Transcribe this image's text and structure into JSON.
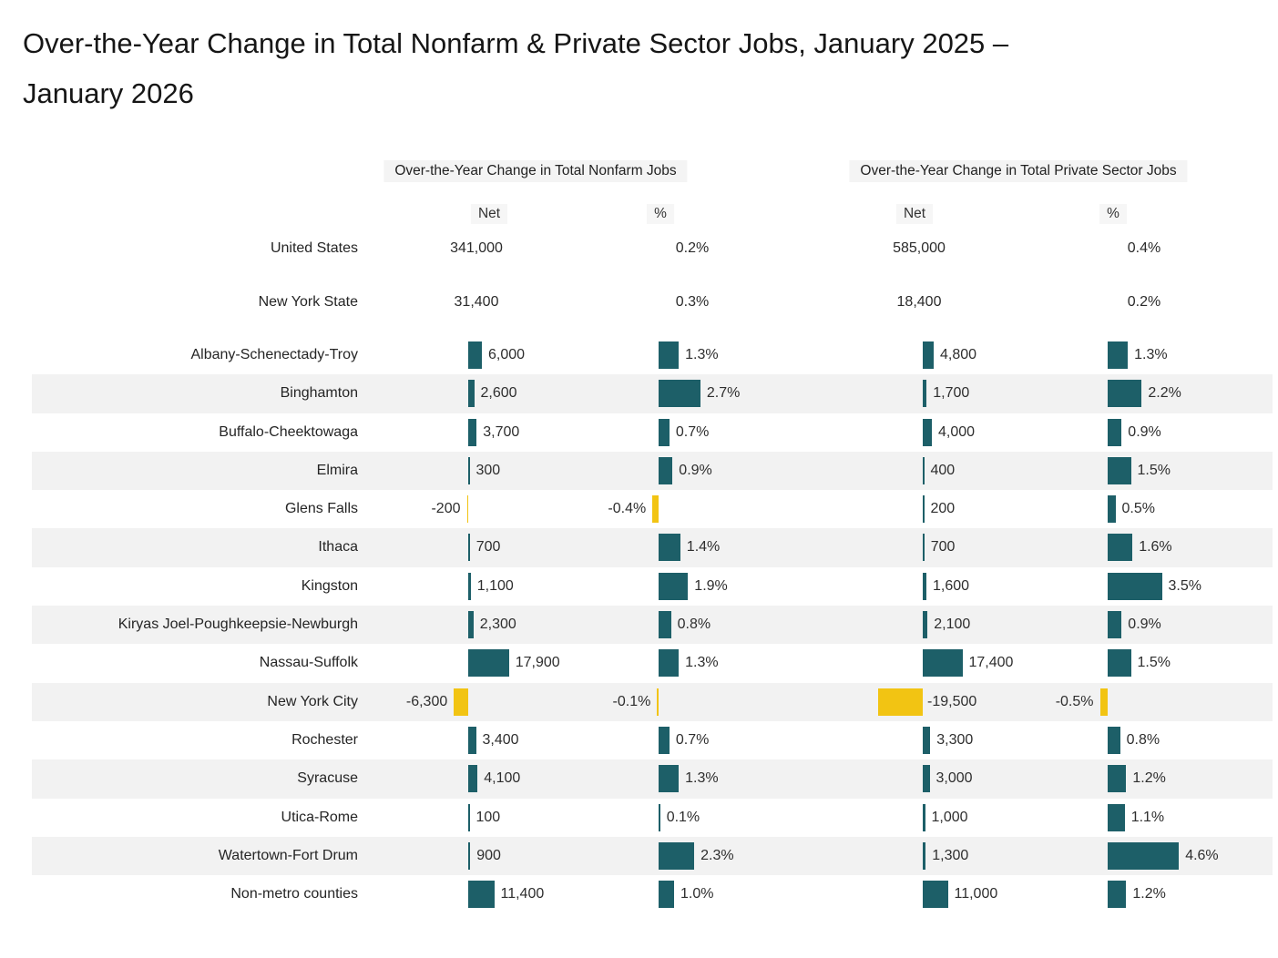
{
  "page": {
    "title": "Over-the-Year Change in Total Nonfarm & Private Sector Jobs, January 2025 – January 2026",
    "title_lines": [
      "Over-the-Year Change in Total Nonfarm & Private Sector Jobs, January 2025 –",
      "January 2026"
    ]
  },
  "chart_data": {
    "type": "bar",
    "orientation": "horizontal",
    "title": "Over-the-Year Change in Total Nonfarm & Private Sector Jobs, January 2025 – January 2026",
    "group_headers": [
      "Over-the-Year Change in Total Nonfarm Jobs",
      "Over-the-Year Change in Total Private Sector Jobs"
    ],
    "column_headers": [
      "Net",
      "%",
      "Net",
      "%"
    ],
    "colors": {
      "positive_bar": "#1d5f68",
      "negative_bar": "#f2c413",
      "row_stripe": "#f2f2f2"
    },
    "legend": "none",
    "grid": "off",
    "summary_rows": [
      {
        "label": "United States",
        "net_nonfarm": 341000,
        "pct_nonfarm": 0.2,
        "net_private": 585000,
        "pct_private": 0.4
      },
      {
        "label": "New York State",
        "net_nonfarm": 31400,
        "pct_nonfarm": 0.3,
        "net_private": 18400,
        "pct_private": 0.2
      }
    ],
    "areas": [
      {
        "label": "Albany-Schenectady-Troy",
        "net_nonfarm": 6000,
        "pct_nonfarm": 1.3,
        "net_private": 4800,
        "pct_private": 1.3
      },
      {
        "label": "Binghamton",
        "net_nonfarm": 2600,
        "pct_nonfarm": 2.7,
        "net_private": 1700,
        "pct_private": 2.2
      },
      {
        "label": "Buffalo-Cheektowaga",
        "net_nonfarm": 3700,
        "pct_nonfarm": 0.7,
        "net_private": 4000,
        "pct_private": 0.9
      },
      {
        "label": "Elmira",
        "net_nonfarm": 300,
        "pct_nonfarm": 0.9,
        "net_private": 400,
        "pct_private": 1.5
      },
      {
        "label": "Glens Falls",
        "net_nonfarm": -200,
        "pct_nonfarm": -0.4,
        "net_private": 200,
        "pct_private": 0.5
      },
      {
        "label": "Ithaca",
        "net_nonfarm": 700,
        "pct_nonfarm": 1.4,
        "net_private": 700,
        "pct_private": 1.6
      },
      {
        "label": "Kingston",
        "net_nonfarm": 1100,
        "pct_nonfarm": 1.9,
        "net_private": 1600,
        "pct_private": 3.5
      },
      {
        "label": "Kiryas Joel-Poughkeepsie-Newburgh",
        "net_nonfarm": 2300,
        "pct_nonfarm": 0.8,
        "net_private": 2100,
        "pct_private": 0.9
      },
      {
        "label": "Nassau-Suffolk",
        "net_nonfarm": 17900,
        "pct_nonfarm": 1.3,
        "net_private": 17400,
        "pct_private": 1.5
      },
      {
        "label": "New York City",
        "net_nonfarm": -6300,
        "pct_nonfarm": -0.1,
        "net_private": -19500,
        "pct_private": -0.5
      },
      {
        "label": "Rochester",
        "net_nonfarm": 3400,
        "pct_nonfarm": 0.7,
        "net_private": 3300,
        "pct_private": 0.8
      },
      {
        "label": "Syracuse",
        "net_nonfarm": 4100,
        "pct_nonfarm": 1.3,
        "net_private": 3000,
        "pct_private": 1.2
      },
      {
        "label": "Utica-Rome",
        "net_nonfarm": 100,
        "pct_nonfarm": 0.1,
        "net_private": 1000,
        "pct_private": 1.1
      },
      {
        "label": "Watertown-Fort Drum",
        "net_nonfarm": 900,
        "pct_nonfarm": 2.3,
        "net_private": 1300,
        "pct_private": 4.6
      },
      {
        "label": "Non-metro counties",
        "net_nonfarm": 11400,
        "pct_nonfarm": 1.0,
        "net_private": 11000,
        "pct_private": 1.2
      }
    ]
  }
}
